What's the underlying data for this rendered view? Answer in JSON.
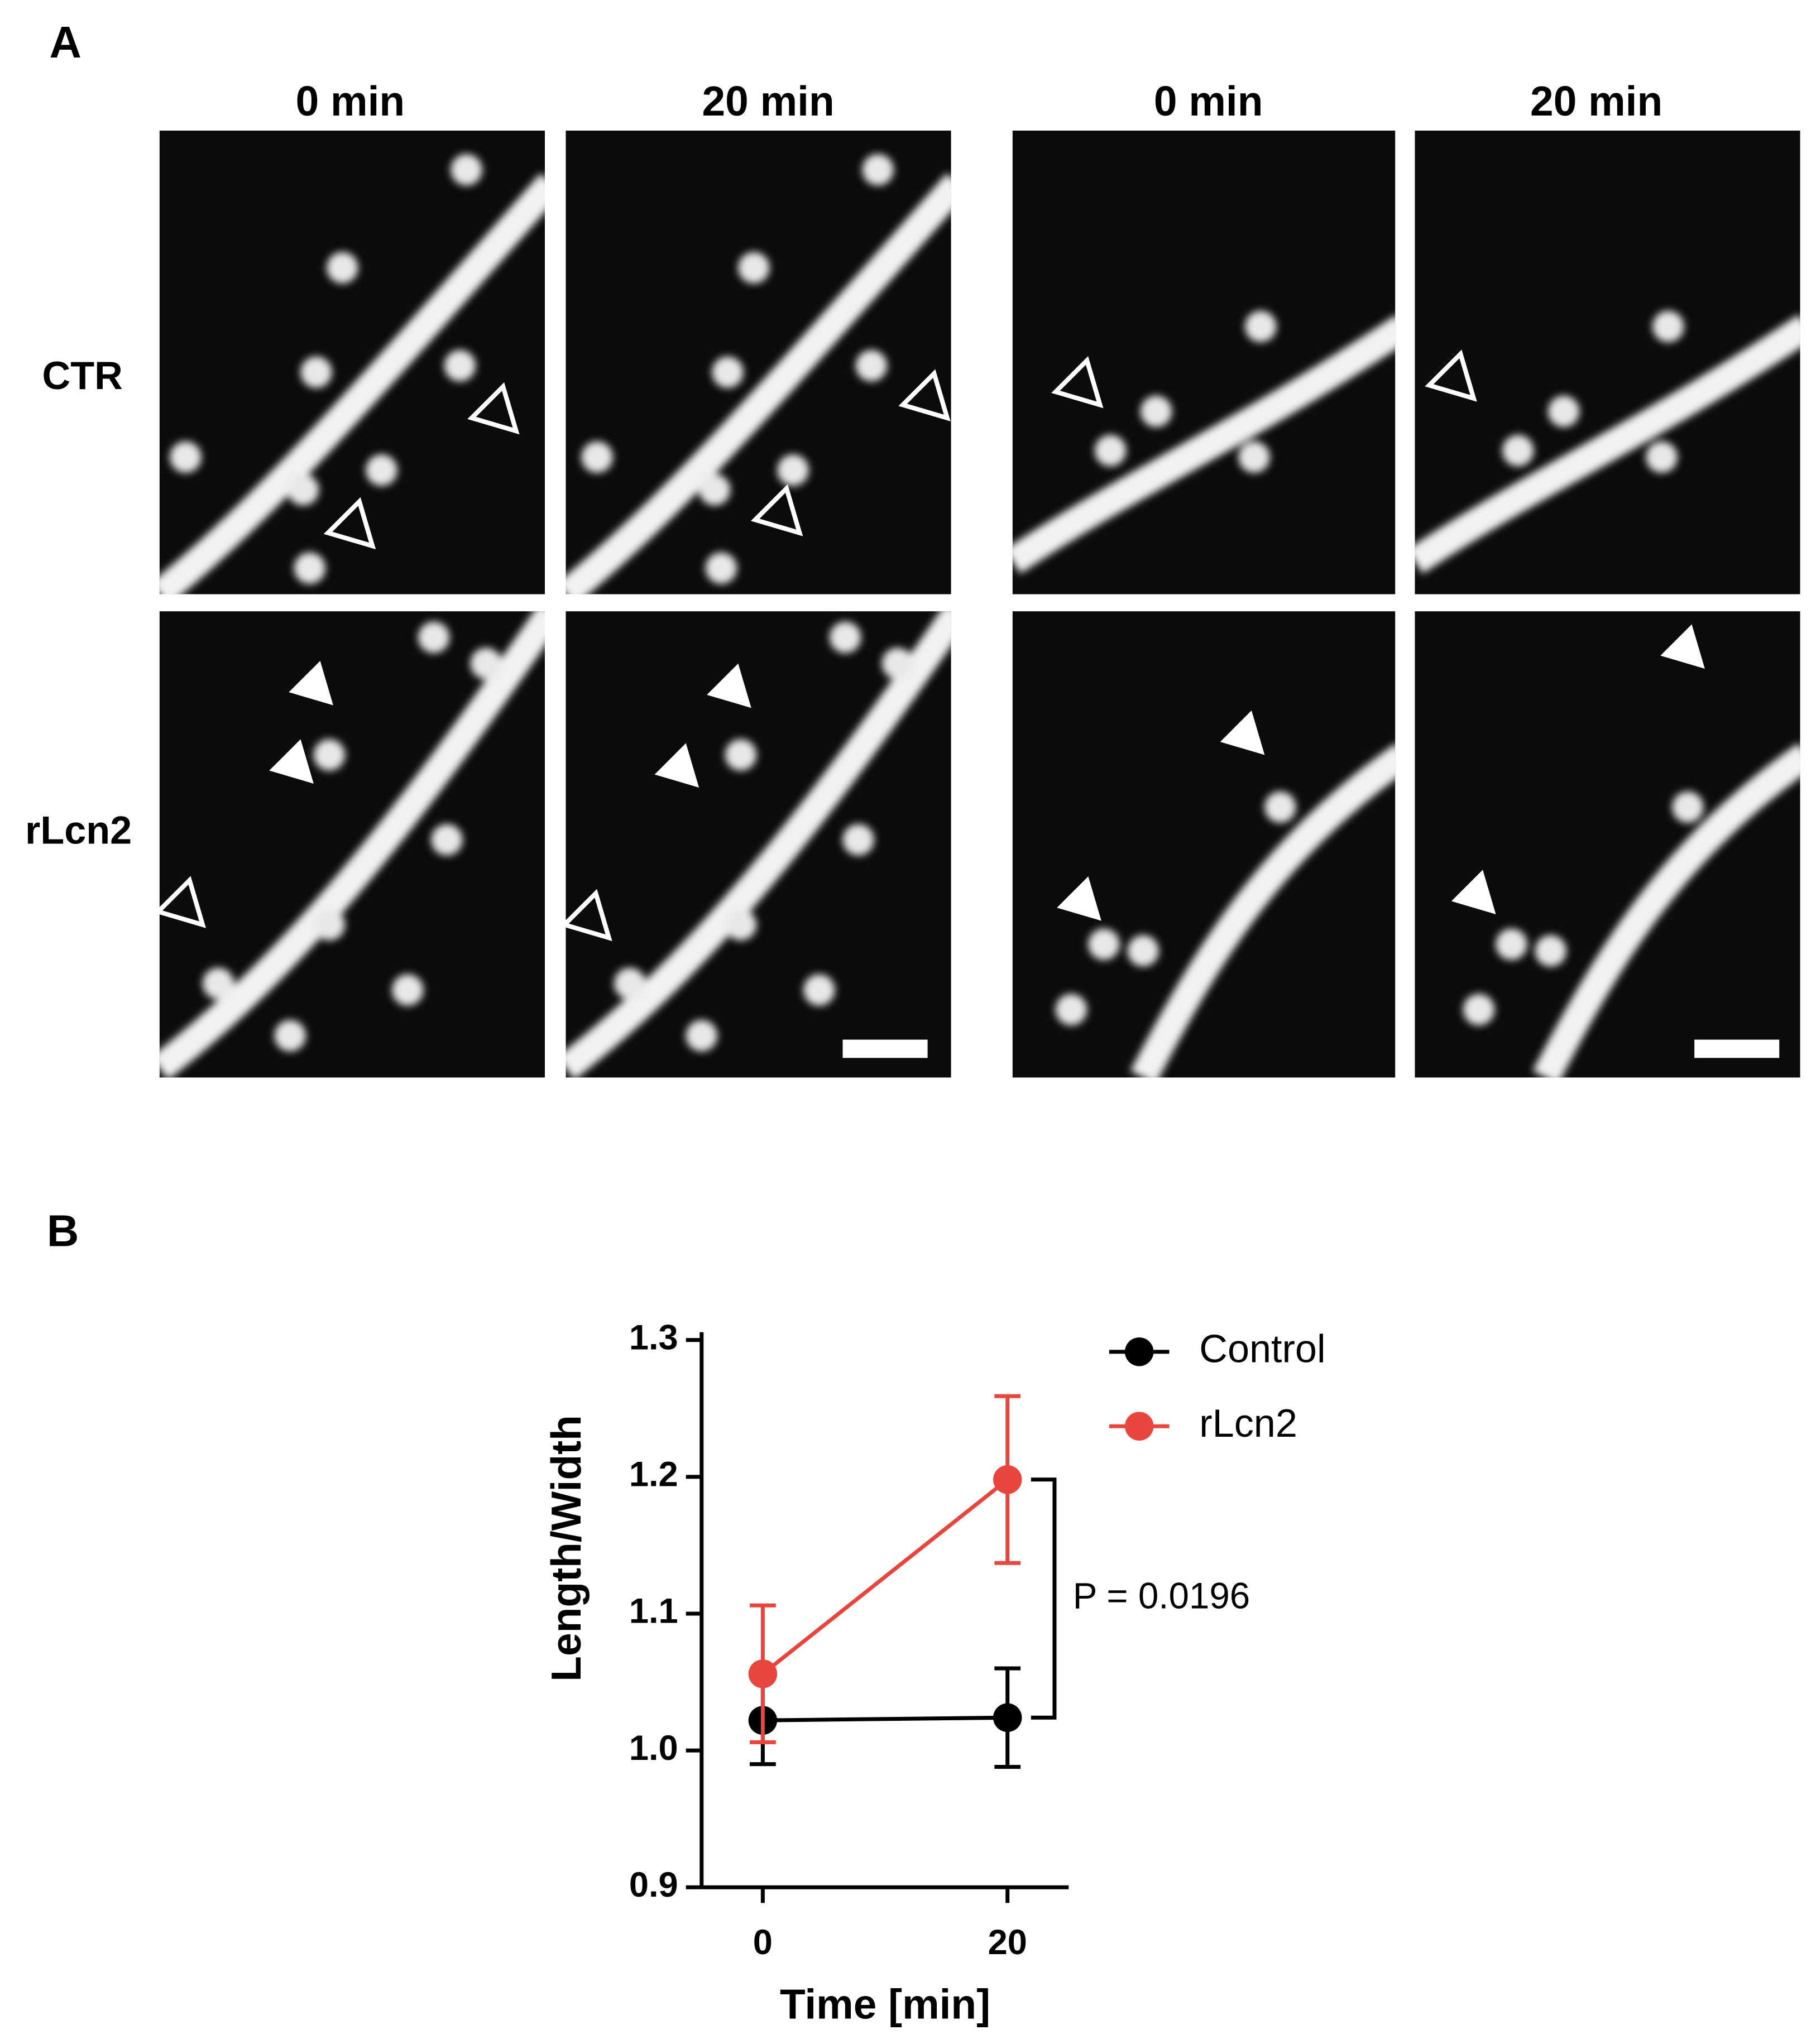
{
  "figure": {
    "panel_labels": [
      "A",
      "B"
    ],
    "column_headers": [
      "0 min",
      "20 min",
      "0 min",
      "20 min"
    ],
    "row_labels": [
      "CTR",
      "rLcn2"
    ]
  },
  "chart_data": {
    "type": "line",
    "x_label": "Time [min]",
    "y_label": "Length/Width",
    "x": [
      0,
      20
    ],
    "series": [
      {
        "name": "Control",
        "color": "#000000",
        "values": [
          1.022,
          1.024
        ],
        "errors": [
          0.032,
          0.036
        ]
      },
      {
        "name": "rLcn2",
        "color": "#e8453c",
        "values": [
          1.056,
          1.198
        ],
        "errors": [
          0.05,
          0.061
        ]
      }
    ],
    "xlim": [
      -5,
      25
    ],
    "xticks": [
      0,
      20
    ],
    "ylim": [
      0.9,
      1.3
    ],
    "yticks": [
      0.9,
      {
        "value": 1,
        "label": "1.0"
      },
      1.1,
      1.2,
      1.3
    ],
    "annotation": "P = 0.0196",
    "legend": "right"
  }
}
